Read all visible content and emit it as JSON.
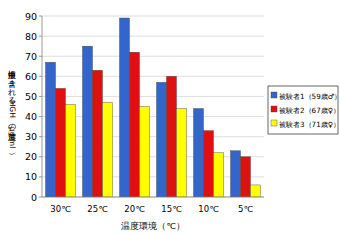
{
  "chart_data": {
    "type": "bar",
    "x_label": "温度環境（℃）",
    "y_label": "血液中に含まれるHGHの濃度（μg/ml）",
    "categories": [
      "30℃",
      "25℃",
      "20℃",
      "15℃",
      "10℃",
      "5℃"
    ],
    "series": [
      {
        "name": "被験者1（59歳♂）",
        "color": "#3366cc",
        "values": [
          67,
          75,
          89,
          57,
          44,
          23
        ]
      },
      {
        "name": "被験者2（67歳♀）",
        "color": "#e01010",
        "values": [
          54,
          63,
          72,
          60,
          33,
          20
        ]
      },
      {
        "name": "被験者3（71歳♀）",
        "color": "#ffff00",
        "values": [
          46,
          47,
          45,
          44,
          22,
          6
        ]
      }
    ],
    "ylim": [
      0,
      90
    ],
    "yticks": [
      0,
      10,
      20,
      30,
      40,
      50,
      60,
      70,
      80,
      90
    ],
    "grid": true,
    "legend": "right"
  }
}
